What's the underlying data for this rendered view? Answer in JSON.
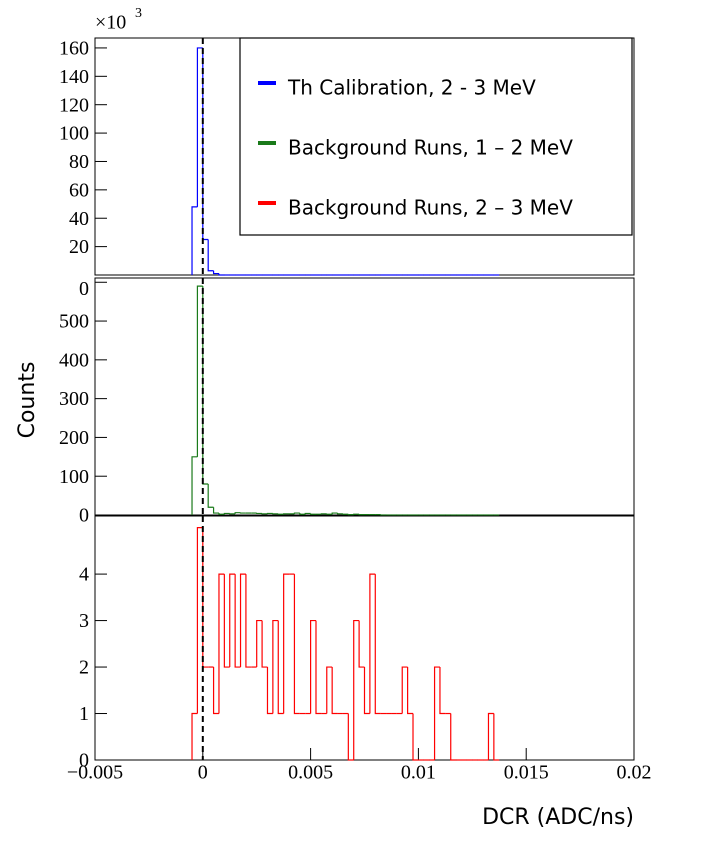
{
  "chart_data": [
    {
      "type": "histogram",
      "name": "Th Calibration, 2 - 3 MeV",
      "color": "#0000ff",
      "y_multiplier": "×10",
      "y_multiplier_exponent": "3",
      "bins": [
        -0.0005,
        -0.00025,
        0,
        0.00025,
        0.0005,
        0.00075,
        0.001,
        0.00125,
        0.0015,
        0.00175,
        0.002,
        0.00225,
        0.0025,
        0.00275,
        0.003,
        0.00325,
        0.0035,
        0.00375,
        0.004,
        0.00425,
        0.0045,
        0.00475,
        0.005,
        0.00525,
        0.0055,
        0.00575,
        0.006,
        0.00625,
        0.0065,
        0.00675,
        0.007,
        0.00725,
        0.0075,
        0.00775,
        0.008,
        0.00825,
        0.0085,
        0.00875,
        0.009,
        0.00925,
        0.0095,
        0.00975,
        0.01,
        0.01025,
        0.0105,
        0.01075,
        0.011,
        0.01125,
        0.0115,
        0.01175,
        0.012,
        0.01225,
        0.0125,
        0.01275,
        0.013,
        0.01325,
        0.0135,
        0.01375
      ],
      "values": [
        48,
        160,
        25,
        3,
        1,
        0,
        0,
        0,
        0,
        0,
        0,
        0,
        0,
        0,
        0,
        0,
        0,
        0,
        0,
        0,
        0,
        0,
        0,
        0,
        0,
        0,
        0,
        0,
        0,
        0,
        0,
        0,
        0,
        0,
        0,
        0,
        0,
        0,
        0,
        0,
        0,
        0,
        0,
        0,
        0,
        0,
        0,
        0,
        0,
        0,
        0,
        0,
        0,
        0,
        0,
        0,
        0
      ],
      "xlim": [
        -0.005,
        0.02
      ],
      "ylim": [
        0,
        167
      ],
      "yticks": [
        20,
        40,
        60,
        80,
        100,
        120,
        140,
        160
      ],
      "vline": 0,
      "legend": "upper right"
    },
    {
      "type": "histogram",
      "name": "Background Runs, 1 – 2 MeV",
      "color": "#1a7a1a",
      "y_label": "Counts",
      "bins": [
        -0.0005,
        -0.00025,
        0,
        0.00025,
        0.0005,
        0.00075,
        0.001,
        0.00125,
        0.0015,
        0.00175,
        0.002,
        0.00225,
        0.0025,
        0.00275,
        0.003,
        0.00325,
        0.0035,
        0.00375,
        0.004,
        0.00425,
        0.0045,
        0.00475,
        0.005,
        0.00525,
        0.0055,
        0.00575,
        0.006,
        0.00625,
        0.0065,
        0.00675,
        0.007,
        0.00725,
        0.0075,
        0.00775,
        0.008,
        0.00825,
        0.0085,
        0.00875,
        0.009,
        0.00925,
        0.0095,
        0.00975,
        0.01,
        0.01025,
        0.0105,
        0.01075,
        0.011,
        0.01125,
        0.0115,
        0.01175,
        0.012,
        0.01225,
        0.0125,
        0.01275,
        0.013,
        0.01325,
        0.0135,
        0.01375
      ],
      "values": [
        150,
        590,
        80,
        20,
        5,
        2,
        4,
        3,
        6,
        5,
        5,
        5,
        4,
        3,
        4,
        3,
        2,
        3,
        3,
        5,
        2,
        4,
        2,
        2,
        3,
        2,
        5,
        3,
        2,
        1,
        2,
        1,
        1,
        1,
        1,
        0,
        0,
        0,
        0,
        0,
        0,
        0,
        0,
        0,
        0,
        0,
        0,
        0,
        0,
        0,
        0,
        0,
        0,
        0,
        0,
        0,
        0
      ],
      "xlim": [
        -0.005,
        0.02
      ],
      "ylim": [
        0,
        611
      ],
      "yticks": [
        {
          "value": 0,
          "label": "0"
        },
        100,
        200,
        300,
        400,
        500,
        {
          "value": 600,
          "label": "0"
        }
      ],
      "vline": 0
    },
    {
      "type": "histogram",
      "name": "Background Runs, 2 – 3 MeV",
      "color": "#ff0000",
      "x_label": "DCR (ADC/ns)",
      "bins": [
        -0.0005,
        -0.00025,
        0,
        0.00025,
        0.0005,
        0.00075,
        0.001,
        0.00125,
        0.0015,
        0.00175,
        0.002,
        0.00225,
        0.0025,
        0.00275,
        0.003,
        0.00325,
        0.0035,
        0.00375,
        0.004,
        0.00425,
        0.0045,
        0.00475,
        0.005,
        0.00525,
        0.0055,
        0.00575,
        0.006,
        0.00625,
        0.0065,
        0.00675,
        0.007,
        0.00725,
        0.0075,
        0.00775,
        0.008,
        0.00825,
        0.0085,
        0.00875,
        0.009,
        0.00925,
        0.0095,
        0.00975,
        0.01,
        0.01025,
        0.0105,
        0.01075,
        0.011,
        0.01125,
        0.0115,
        0.01175,
        0.012,
        0.01225,
        0.0125,
        0.01275,
        0.013,
        0.01325,
        0.0135,
        0.01375
      ],
      "values": [
        1,
        5,
        2,
        2,
        1,
        4,
        2,
        4,
        2,
        4,
        2,
        2,
        3,
        2,
        1,
        3,
        1,
        4,
        4,
        1,
        1,
        1,
        3,
        1,
        1,
        2,
        1,
        1,
        1,
        0,
        3,
        2,
        1,
        4,
        1,
        1,
        1,
        1,
        1,
        2,
        1,
        0,
        0,
        0,
        0,
        2,
        1,
        1,
        0,
        0,
        0,
        0,
        0,
        0,
        0,
        1,
        0
      ],
      "xlim": [
        -0.005,
        0.02
      ],
      "ylim": [
        0,
        5.25
      ],
      "yticks": [
        0,
        1,
        2,
        3,
        4
      ],
      "xticks": [
        {
          "value": -0.005,
          "label": "−0.005"
        },
        0,
        0.005,
        0.01,
        0.015,
        0.02
      ],
      "vline": 0
    }
  ]
}
